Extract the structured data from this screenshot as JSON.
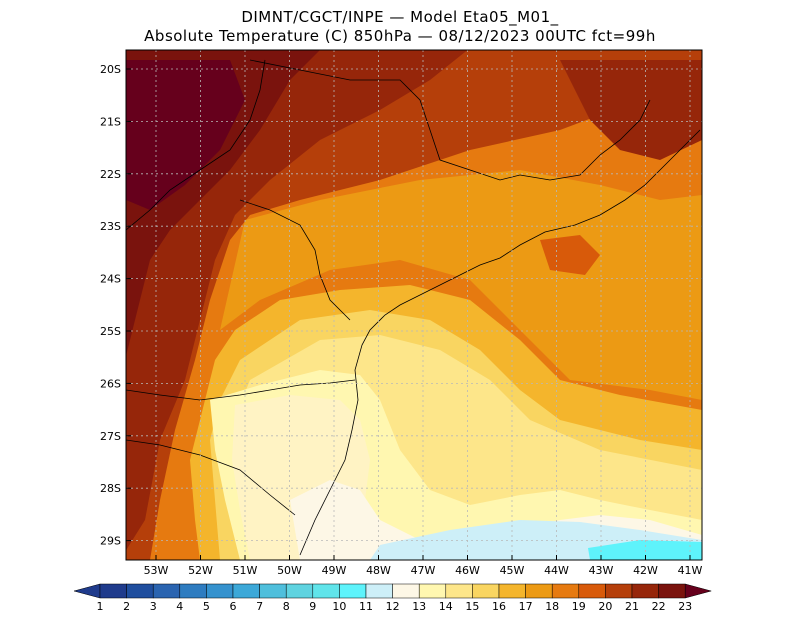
{
  "header": {
    "line1": "DIMNT/CGCT/INPE —  Model Eta05_M01_",
    "line2": "Absolute Temperature (C) 850hPa —  08/12/2023 00UTC fct=99h"
  },
  "map": {
    "lat_labels": [
      "20S",
      "21S",
      "22S",
      "23S",
      "24S",
      "25S",
      "26S",
      "27S",
      "28S",
      "29S"
    ],
    "lon_labels": [
      "53W",
      "52W",
      "51W",
      "50W",
      "49W",
      "48W",
      "47W",
      "46W",
      "45W",
      "44W",
      "43W",
      "42W",
      "41W"
    ]
  },
  "colorbar": {
    "labels": [
      "1",
      "2",
      "3",
      "4",
      "5",
      "6",
      "7",
      "8",
      "9",
      "10",
      "11",
      "12",
      "13",
      "14",
      "15",
      "16",
      "17",
      "18",
      "19",
      "20",
      "21",
      "22",
      "23"
    ],
    "colors": [
      "#1f3b8c",
      "#1f4e9e",
      "#2a64b0",
      "#2e7cc0",
      "#3592ce",
      "#3ca8d8",
      "#4fbfdc",
      "#5fd3e0",
      "#60e4ea",
      "#5ef3fb",
      "#cdeff8",
      "#fdf7e6",
      "#fff7b0",
      "#fde68a",
      "#f9d561",
      "#f4b52c",
      "#ec9a14",
      "#e67a10",
      "#d85a0a",
      "#b53f0a",
      "#96260a",
      "#7a130d",
      "#66001c"
    ]
  }
}
